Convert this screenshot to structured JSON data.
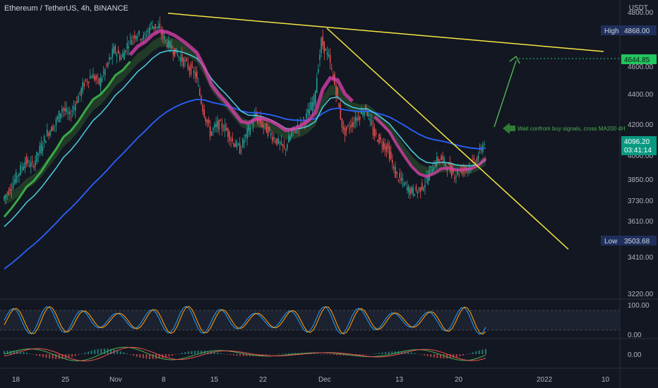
{
  "header": {
    "symbol": "Ethereum / TetherUS, 4h, BINANCE",
    "currency": "USDT"
  },
  "price_axis": {
    "ticks": [
      "4800.00",
      "4600.00",
      "4400.00",
      "4200.00",
      "4000.00",
      "3850.00",
      "3730.00",
      "3610.00",
      "3410.00",
      "3220.00"
    ],
    "high_label": "High",
    "high_value": "4868.00",
    "low_label": "Low",
    "low_value": "3503.68",
    "target_value": "4644.85",
    "last_price": "4096.20",
    "countdown": "03:41:14"
  },
  "indicator_axis": {
    "stoch_ticks": [
      "100.00",
      "0.00"
    ],
    "macd_ticks": [
      "0.00"
    ]
  },
  "time_axis": {
    "labels": [
      "18",
      "25",
      "Nov",
      "8",
      "15",
      "22",
      "Dec",
      "13",
      "20",
      "2022",
      "10"
    ]
  },
  "annotation": {
    "text": "Wait confrom buy signals, cross MA200 4H"
  },
  "colors": {
    "background": "#131722",
    "up": "#26a69a",
    "down": "#ef5350",
    "trendline": "#f5e642",
    "ma200": "#2962ff",
    "ma_fast": "#4dd0e1",
    "ribbon_bull": "#3fbf4a",
    "ribbon_bear": "#d63fa8",
    "arrow": "#4caf50",
    "high_badge": "#1e2f5c",
    "target_badge": "#22c55e",
    "price_badge": "#089981"
  },
  "chart_data": {
    "type": "line",
    "title": "Ethereum / TetherUS, 4h, BINANCE",
    "xlabel": "",
    "ylabel": "USDT",
    "ylim": [
      3150,
      4950
    ],
    "x_ticks": [
      "18",
      "25",
      "Nov",
      "8",
      "15",
      "22",
      "Dec",
      "13",
      "20",
      "2022",
      "10"
    ],
    "y_ticks": [
      4800,
      4600,
      4400,
      4200,
      4000,
      3850,
      3730,
      3610,
      3410,
      3220
    ],
    "series": [
      {
        "values": [
          3750,
          3820,
          3900,
          3980,
          3950,
          4050,
          4150,
          4200,
          4300,
          4250,
          4350,
          4450,
          4500,
          4450,
          4550,
          4650,
          4600,
          4700,
          4750,
          4720,
          4800,
          4780,
          4700,
          4650,
          4600,
          4550,
          4500,
          4300,
          4150,
          4200,
          4180,
          4100,
          4050,
          4150,
          4250,
          4200,
          4150,
          4100,
          4050,
          4150,
          4200,
          4250,
          4350,
          4700,
          4600,
          4400,
          4150,
          4200,
          4250,
          4300,
          4150,
          4100,
          4050,
          3900,
          3850,
          3800,
          3800,
          3850,
          3950,
          4000,
          3950,
          3900,
          3930,
          3950,
          4000,
          4096
        ]
      }
    ],
    "markers": {
      "high": 4868.0,
      "low": 3503.68,
      "target": 4644.85,
      "last": 4096.2
    }
  }
}
